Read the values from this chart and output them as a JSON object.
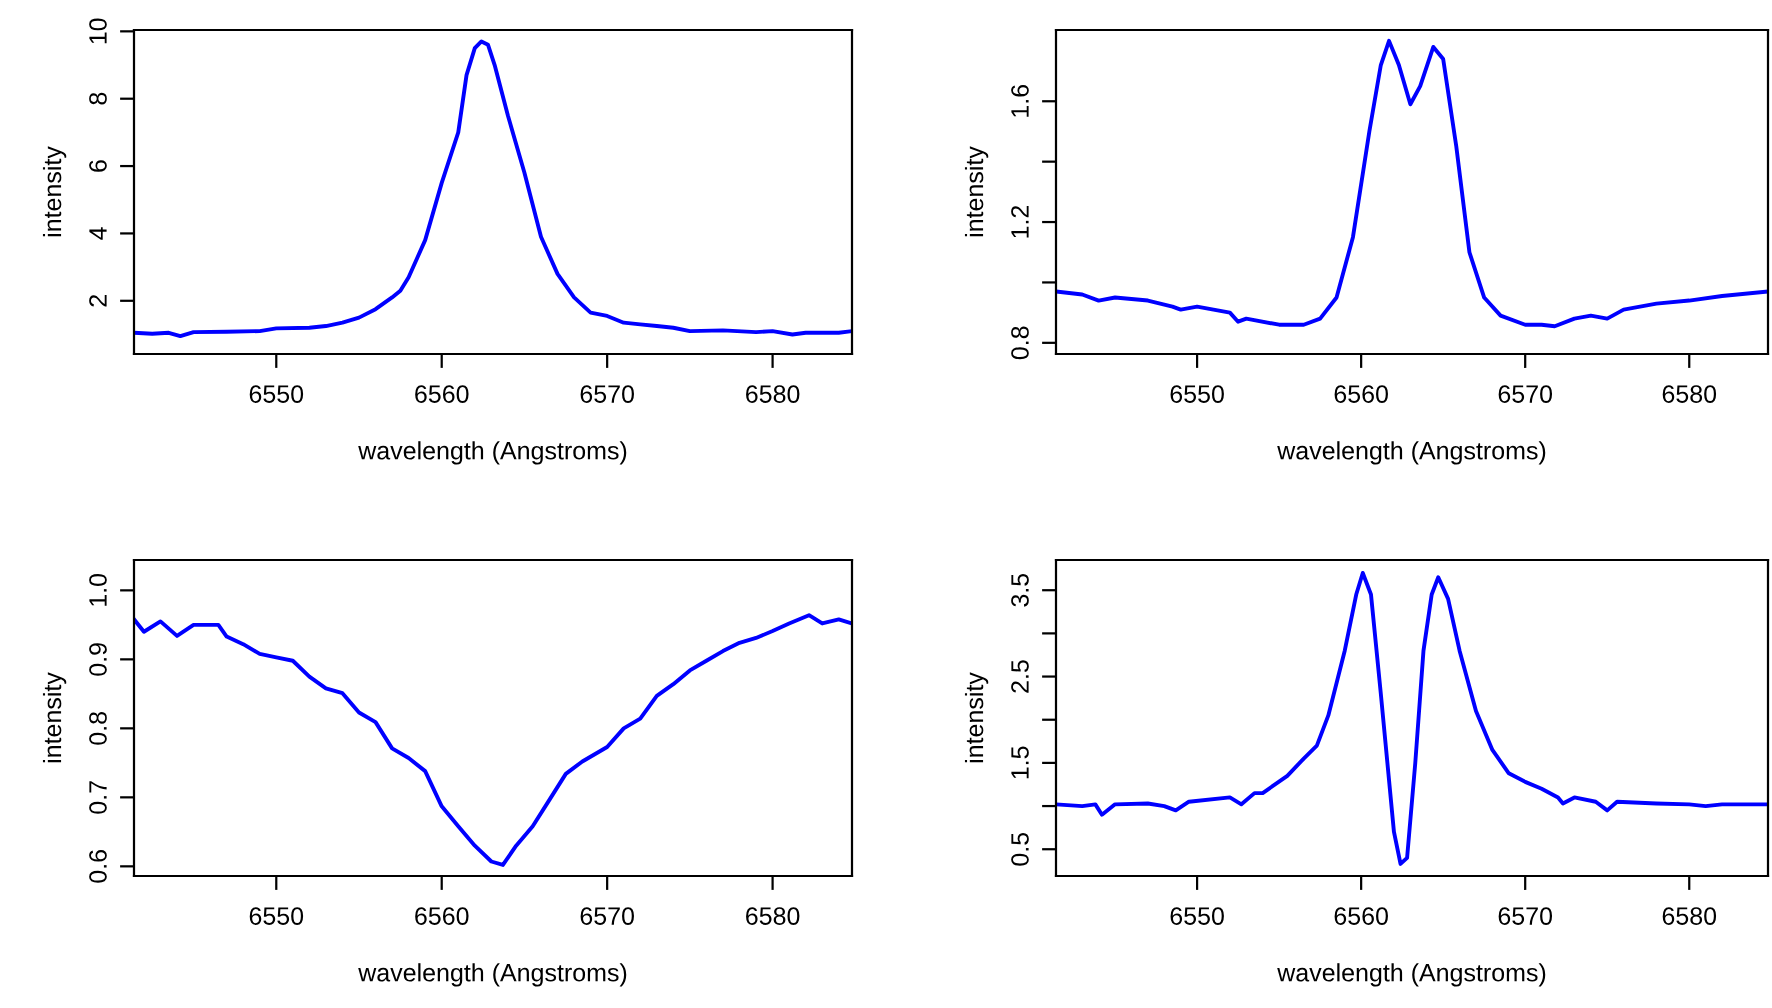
{
  "chart_data": [
    {
      "type": "line",
      "xlabel": "wavelength (Angstroms)",
      "ylabel": "intensity",
      "xlim": [
        6541.4,
        6584.8
      ],
      "ylim": [
        0.42,
        10.04
      ],
      "xticks": [
        6550,
        6560,
        6570,
        6580
      ],
      "yticks": [
        2,
        4,
        6,
        8,
        10
      ],
      "grid": false,
      "legend": false,
      "x": [
        6541.4,
        6542.5,
        6543.5,
        6544.2,
        6545,
        6547,
        6549,
        6550,
        6552,
        6553,
        6554,
        6555,
        6556,
        6557,
        6557.5,
        6558,
        6559,
        6560,
        6561,
        6561.5,
        6562,
        6562.4,
        6562.8,
        6563.2,
        6564,
        6565,
        6566,
        6567,
        6568,
        6569,
        6570,
        6571,
        6572,
        6573,
        6574,
        6575,
        6577,
        6579,
        6580,
        6581.2,
        6582,
        6584,
        6584.8
      ],
      "series": [
        {
          "color": "#0000ff",
          "values": [
            1.05,
            1.02,
            1.05,
            0.95,
            1.07,
            1.08,
            1.1,
            1.18,
            1.2,
            1.25,
            1.35,
            1.5,
            1.75,
            2.1,
            2.3,
            2.7,
            3.8,
            5.5,
            7.0,
            8.7,
            9.5,
            9.7,
            9.6,
            9.0,
            7.5,
            5.8,
            3.9,
            2.8,
            2.1,
            1.65,
            1.55,
            1.35,
            1.3,
            1.25,
            1.2,
            1.1,
            1.12,
            1.07,
            1.1,
            1.0,
            1.05,
            1.05,
            1.1
          ]
        }
      ]
    },
    {
      "type": "line",
      "xlabel": "wavelength (Angstroms)",
      "ylabel": "intensity",
      "xlim": [
        6541.4,
        6584.8
      ],
      "ylim": [
        0.763,
        1.836
      ],
      "xticks": [
        6550,
        6560,
        6570,
        6580
      ],
      "yticks": [
        0.8,
        {
          "value": 1.0,
          "label": null
        },
        1.2,
        {
          "value": 1.4,
          "label": null
        },
        1.6
      ],
      "grid": false,
      "legend": false,
      "x": [
        6541.4,
        6543,
        6544,
        6545,
        6547,
        6548.5,
        6549,
        6550,
        6552,
        6552.5,
        6553,
        6555,
        6556.5,
        6557.5,
        6558.5,
        6559.5,
        6560.5,
        6561.2,
        6561.7,
        6562.3,
        6563,
        6563.6,
        6564.4,
        6565,
        6565.8,
        6566.6,
        6567.5,
        6568.5,
        6570,
        6571,
        6571.8,
        6573,
        6574,
        6575,
        6576,
        6578,
        6580,
        6582,
        6584.8
      ],
      "series": [
        {
          "color": "#0000ff",
          "values": [
            0.97,
            0.96,
            0.94,
            0.95,
            0.94,
            0.92,
            0.91,
            0.92,
            0.9,
            0.87,
            0.88,
            0.86,
            0.86,
            0.88,
            0.95,
            1.15,
            1.5,
            1.72,
            1.8,
            1.72,
            1.59,
            1.65,
            1.78,
            1.74,
            1.45,
            1.1,
            0.95,
            0.89,
            0.86,
            0.86,
            0.855,
            0.88,
            0.89,
            0.88,
            0.91,
            0.93,
            0.94,
            0.955,
            0.97
          ]
        }
      ]
    },
    {
      "type": "line",
      "xlabel": "wavelength (Angstroms)",
      "ylabel": "intensity",
      "xlim": [
        6541.4,
        6584.8
      ],
      "ylim": [
        0.586,
        1.044
      ],
      "xticks": [
        6550,
        6560,
        6570,
        6580
      ],
      "yticks": [
        0.6,
        0.7,
        0.8,
        0.9,
        {
          "value": 1.0,
          "label": "1.0"
        }
      ],
      "grid": false,
      "legend": false,
      "x": [
        6541.4,
        6542,
        6543,
        6544,
        6545,
        6546.5,
        6547,
        6548,
        6549,
        6550,
        6551,
        6552,
        6553,
        6554,
        6555,
        6556,
        6557,
        6558,
        6559,
        6560,
        6561,
        6562,
        6563,
        6563.7,
        6564.5,
        6565.5,
        6566.5,
        6567.5,
        6568.5,
        6570,
        6571,
        6572,
        6573,
        6574,
        6575,
        6576,
        6577,
        6578,
        6579,
        6580,
        6581,
        6582.2,
        6583,
        6584,
        6584.8
      ],
      "series": [
        {
          "color": "#0000ff",
          "values": [
            0.958,
            0.94,
            0.955,
            0.934,
            0.95,
            0.95,
            0.933,
            0.922,
            0.908,
            0.903,
            0.898,
            0.875,
            0.858,
            0.851,
            0.823,
            0.809,
            0.771,
            0.757,
            0.738,
            0.687,
            0.658,
            0.63,
            0.607,
            0.602,
            0.63,
            0.658,
            0.696,
            0.734,
            0.752,
            0.773,
            0.8,
            0.814,
            0.847,
            0.864,
            0.884,
            0.898,
            0.912,
            0.924,
            0.931,
            0.941,
            0.952,
            0.964,
            0.952,
            0.958,
            0.952
          ]
        }
      ]
    },
    {
      "type": "line",
      "xlabel": "wavelength (Angstroms)",
      "ylabel": "intensity",
      "xlim": [
        6541.4,
        6584.8
      ],
      "ylim": [
        0.19,
        3.85
      ],
      "xticks": [
        6550,
        6560,
        6570,
        6580
      ],
      "yticks": [
        0.5,
        {
          "value": 1.0,
          "label": null
        },
        1.5,
        {
          "value": 2.0,
          "label": null
        },
        2.5,
        {
          "value": 3.0,
          "label": null
        },
        3.5
      ],
      "grid": false,
      "legend": false,
      "x": [
        6541.4,
        6543,
        6543.8,
        6544.2,
        6545,
        6547,
        6548,
        6548.7,
        6549.5,
        6552,
        6552.7,
        6553.5,
        6554,
        6555.5,
        6556.5,
        6557.3,
        6558,
        6559,
        6559.7,
        6560.1,
        6560.6,
        6561.2,
        6562,
        6562.4,
        6562.8,
        6563.3,
        6563.8,
        6564.3,
        6564.7,
        6565.3,
        6566,
        6567,
        6568,
        6569,
        6570,
        6571,
        6572,
        6572.3,
        6573,
        6574.3,
        6575,
        6575.6,
        6578,
        6580,
        6581,
        6582,
        6584.8
      ],
      "series": [
        {
          "color": "#0000ff",
          "values": [
            1.02,
            1.0,
            1.02,
            0.9,
            1.02,
            1.03,
            1.0,
            0.95,
            1.05,
            1.1,
            1.02,
            1.15,
            1.15,
            1.35,
            1.55,
            1.7,
            2.05,
            2.8,
            3.45,
            3.7,
            3.45,
            2.3,
            0.7,
            0.33,
            0.4,
            1.5,
            2.8,
            3.45,
            3.65,
            3.4,
            2.8,
            2.1,
            1.65,
            1.38,
            1.28,
            1.2,
            1.1,
            1.03,
            1.1,
            1.05,
            0.95,
            1.05,
            1.03,
            1.02,
            1.0,
            1.02,
            1.02
          ]
        }
      ]
    }
  ]
}
